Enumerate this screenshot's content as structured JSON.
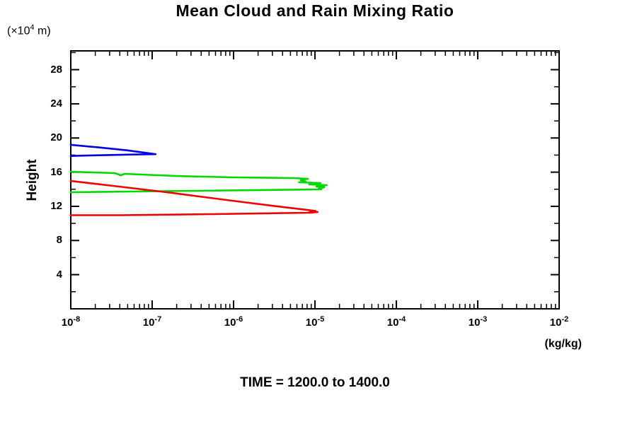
{
  "page": {
    "background": "#ffffff"
  },
  "chart_data": {
    "type": "line",
    "title": "Mean Cloud and Rain Mixing Ratio",
    "subtitle": "TIME = 1200.0 to 1400.0",
    "ylabel": "Height",
    "y_unit": {
      "base": "(×10",
      "exponent": "4",
      "suffix": " m)"
    },
    "xlabel": "(kg/kg)",
    "x_scale": "log",
    "x_tick_base": "10",
    "x_tick_exponents": [
      -8,
      -7,
      -6,
      -5,
      -4,
      -3,
      -2
    ],
    "xlim": [
      1e-08,
      0.01
    ],
    "ylim": [
      0,
      30.2
    ],
    "y_ticks_major": [
      4,
      8,
      12,
      16,
      20,
      24,
      28
    ],
    "y_ticks_minor": [
      2,
      6,
      10,
      14,
      18,
      22,
      26,
      30
    ],
    "grid": false,
    "legend": "none",
    "frame": "box",
    "axis_color": "#000000",
    "series": [
      {
        "name": "blue-curve",
        "color": "#0000e8",
        "points": [
          [
            1e-08,
            19.2
          ],
          [
            2.2e-08,
            18.9
          ],
          [
            5e-08,
            18.55
          ],
          [
            1.1e-07,
            18.1
          ],
          [
            5e-08,
            18.05
          ],
          [
            2e-08,
            17.97
          ],
          [
            1e-08,
            17.9
          ]
        ]
      },
      {
        "name": "green-curve",
        "color": "#00d800",
        "points": [
          [
            1e-08,
            16.05
          ],
          [
            3.5e-08,
            15.89
          ],
          [
            4.1e-08,
            15.64
          ],
          [
            4.6e-08,
            15.8
          ],
          [
            2e-07,
            15.55
          ],
          [
            1e-06,
            15.39
          ],
          [
            5.5e-06,
            15.31
          ],
          [
            8.2e-06,
            15.22
          ],
          [
            6.7e-06,
            15.06
          ],
          [
            7.7e-06,
            14.89
          ],
          [
            6.4e-06,
            14.81
          ],
          [
            1.17e-05,
            14.73
          ],
          [
            8.5e-06,
            14.56
          ],
          [
            1.4e-05,
            14.48
          ],
          [
            1.04e-05,
            14.31
          ],
          [
            1.3e-05,
            14.23
          ],
          [
            1.11e-05,
            14.06
          ],
          [
            1.2e-05,
            13.98
          ],
          [
            1e-08,
            13.65
          ]
        ]
      },
      {
        "name": "red-curve",
        "color": "#f00000",
        "points": [
          [
            1e-08,
            14.97
          ],
          [
            3.3e-08,
            14.4
          ],
          [
            1.5e-07,
            13.65
          ],
          [
            8.2e-07,
            12.74
          ],
          [
            4.1e-06,
            11.91
          ],
          [
            7.4e-06,
            11.62
          ],
          [
            1.02e-05,
            11.46
          ],
          [
            8.5e-06,
            11.29
          ],
          [
            1.08e-05,
            11.33
          ],
          [
            8.9e-06,
            11.25
          ],
          [
            5.5e-07,
            11.09
          ],
          [
            4.2e-08,
            10.96
          ],
          [
            1e-08,
            10.96
          ]
        ]
      }
    ]
  }
}
